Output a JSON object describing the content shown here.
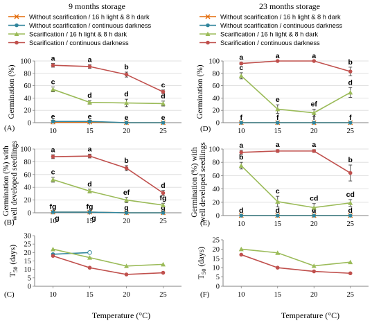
{
  "figure": {
    "x_axis_label": "Temperature (°C)",
    "colors": {
      "without_light": "#E46C0A",
      "without_dark": "#31859C",
      "scar_light": "#9BBB59",
      "scar_dark": "#C0504D",
      "axis": "#808080",
      "grid": "#D9D9D9"
    }
  },
  "columns": [
    {
      "title": "9 months storage",
      "legend": [
        {
          "label": "Without scarification / 16 h light & 8 h dark",
          "color": "#E46C0A",
          "marker": "x"
        },
        {
          "label": "Without scarification / continuous darkness",
          "color": "#31859C",
          "marker": "circle"
        },
        {
          "label": "Scarification / 16 h light & 8 h dark",
          "color": "#9BBB59",
          "marker": "triangle"
        },
        {
          "label": "Scarification / continuous darkness",
          "color": "#C0504D",
          "marker": "circle"
        }
      ]
    },
    {
      "title": "23 months storage",
      "legend": [
        {
          "label": "Without scarification / 16 h light & 8 h dark",
          "color": "#E46C0A",
          "marker": "x"
        },
        {
          "label": "Without scarification / continuous darkness",
          "color": "#31859C",
          "marker": "circle"
        },
        {
          "label": "Scarification / 16 h light & 8 h dark",
          "color": "#9BBB59",
          "marker": "triangle"
        },
        {
          "label": "Scarification / continuous darkness",
          "color": "#C0504D",
          "marker": "circle"
        }
      ]
    }
  ],
  "chart_data": [
    {
      "panel": "(A)",
      "type": "line",
      "ylabel": "Germination (%)",
      "xlabel": "",
      "x": [
        10,
        15,
        20,
        25
      ],
      "xlim": [
        7.5,
        27.5
      ],
      "ylim": [
        0,
        100
      ],
      "yticks": [
        0,
        20,
        40,
        60,
        80,
        100
      ],
      "grid": true,
      "series": [
        {
          "name": "Without scarification / 16 h light & 8 h dark",
          "color": "#E46C0A",
          "marker": "x",
          "values": [
            1,
            1,
            0,
            0
          ],
          "err": [
            0.5,
            0.5,
            0,
            0
          ],
          "letters": [
            "e",
            "e",
            "e",
            "e"
          ]
        },
        {
          "name": "Without scarification / continuous darkness",
          "color": "#31859C",
          "marker": "circle",
          "values": [
            2,
            2,
            0,
            0
          ],
          "err": [
            1,
            1,
            0,
            0
          ]
        },
        {
          "name": "Scarification / 16 h light & 8 h dark",
          "color": "#9BBB59",
          "marker": "triangle",
          "values": [
            54,
            33,
            32,
            31
          ],
          "err": [
            4,
            3,
            6,
            4
          ],
          "letters": [
            "c",
            "d",
            "d",
            "d"
          ]
        },
        {
          "name": "Scarification / continuous darkness",
          "color": "#C0504D",
          "marker": "circle",
          "values": [
            93,
            91,
            78,
            50
          ],
          "err": [
            3,
            3,
            4,
            3
          ],
          "letters": [
            "a",
            "a",
            "b",
            "c"
          ]
        }
      ]
    },
    {
      "panel": "(D)",
      "type": "line",
      "ylabel": "Germination (%)",
      "xlabel": "",
      "x": [
        10,
        15,
        20,
        25
      ],
      "xlim": [
        7.5,
        27.5
      ],
      "ylim": [
        0,
        100
      ],
      "yticks": [
        0,
        20,
        40,
        60,
        80,
        100
      ],
      "grid": true,
      "series": [
        {
          "name": "Without scarification / 16 h light & 8 h dark",
          "color": "#E46C0A",
          "marker": "x",
          "values": [
            0,
            0,
            0,
            0
          ],
          "err": [
            0,
            0,
            0,
            0
          ],
          "letters": [
            "f",
            "f",
            "f",
            "f"
          ]
        },
        {
          "name": "Without scarification / continuous darkness",
          "color": "#31859C",
          "marker": "circle",
          "values": [
            0,
            0,
            0,
            0
          ],
          "err": [
            0,
            0,
            0,
            0
          ]
        },
        {
          "name": "Scarification / 16 h light & 8 h dark",
          "color": "#9BBB59",
          "marker": "triangle",
          "values": [
            76,
            22,
            16,
            49
          ],
          "err": [
            5,
            7,
            6,
            8
          ],
          "letters": [
            "c",
            "e",
            "ef",
            "d"
          ]
        },
        {
          "name": "Scarification / continuous darkness",
          "color": "#C0504D",
          "marker": "circle",
          "values": [
            96,
            100,
            100,
            83
          ],
          "err": [
            2,
            0,
            0,
            7
          ],
          "letters": [
            "a",
            "a",
            "a",
            "b"
          ]
        }
      ]
    },
    {
      "panel": "(B)",
      "type": "line",
      "ylabel": "Germination (%) with well developed seedlings",
      "xlabel": "",
      "x": [
        10,
        15,
        20,
        25
      ],
      "xlim": [
        7.5,
        27.5
      ],
      "ylim": [
        0,
        100
      ],
      "yticks": [
        0,
        20,
        40,
        60,
        80,
        100
      ],
      "grid": true,
      "series": [
        {
          "name": "Without scarification / 16 h light & 8 h dark",
          "color": "#E46C0A",
          "marker": "x",
          "values": [
            1,
            1,
            0,
            0
          ],
          "err": [
            0.5,
            0.5,
            0,
            0
          ],
          "letters": [
            "fg",
            "fg",
            "g",
            "g"
          ]
        },
        {
          "name": "Without scarification / continuous darkness",
          "color": "#31859C",
          "marker": "circle",
          "values": [
            1,
            1,
            0,
            0
          ],
          "err": [
            0.5,
            0.5,
            0,
            0
          ],
          "letters": [
            "g",
            "g"
          ]
        },
        {
          "name": "Scarification / 16 h light & 8 h dark",
          "color": "#9BBB59",
          "marker": "triangle",
          "values": [
            52,
            34,
            20,
            12
          ],
          "err": [
            4,
            3,
            4,
            3
          ],
          "letters": [
            "c",
            "d",
            "ef",
            "fg"
          ]
        },
        {
          "name": "Scarification / continuous darkness",
          "color": "#C0504D",
          "marker": "circle",
          "values": [
            88,
            89,
            70,
            31
          ],
          "err": [
            3,
            3,
            4,
            4
          ],
          "letters": [
            "a",
            "a",
            "b",
            "d"
          ]
        }
      ]
    },
    {
      "panel": "(E)",
      "type": "line",
      "ylabel": "Germination (%) with well developed seedlings",
      "xlabel": "",
      "x": [
        10,
        15,
        20,
        25
      ],
      "xlim": [
        7.5,
        27.5
      ],
      "ylim": [
        0,
        100
      ],
      "yticks": [
        0,
        20,
        40,
        60,
        80,
        100
      ],
      "grid": true,
      "series": [
        {
          "name": "Without scarification / 16 h light & 8 h dark",
          "color": "#E46C0A",
          "marker": "x",
          "values": [
            0,
            0,
            0,
            0
          ],
          "err": [
            0,
            0,
            0,
            0
          ],
          "letters": [
            "d",
            "d",
            "d",
            "d"
          ]
        },
        {
          "name": "Without scarification / continuous darkness",
          "color": "#31859C",
          "marker": "circle",
          "values": [
            0,
            0,
            0,
            0
          ],
          "err": [
            0,
            0,
            0,
            0
          ]
        },
        {
          "name": "Scarification / 16 h light & 8 h dark",
          "color": "#9BBB59",
          "marker": "triangle",
          "values": [
            75,
            21,
            12,
            19
          ],
          "err": [
            5,
            8,
            6,
            5
          ],
          "letters": [
            "b",
            "c",
            "cd",
            "cd"
          ]
        },
        {
          "name": "Scarification / continuous darkness",
          "color": "#C0504D",
          "marker": "circle",
          "values": [
            95,
            97,
            97,
            64
          ],
          "err": [
            3,
            2,
            2,
            12
          ],
          "letters": [
            "a",
            "a",
            "a",
            "b"
          ]
        }
      ]
    },
    {
      "panel": "(C)",
      "type": "line",
      "ylabel": "T50 (days)",
      "xlabel": "Temperature (°C)",
      "x": [
        10,
        15,
        20,
        25
      ],
      "xlim": [
        7.5,
        27.5
      ],
      "ylim": [
        0,
        30
      ],
      "yticks": [
        0,
        5,
        10,
        15,
        20,
        25,
        30
      ],
      "grid": false,
      "series": [
        {
          "name": "Without scarification / continuous darkness",
          "color": "#31859C",
          "marker": "circle",
          "values": [
            19,
            20,
            null,
            null
          ]
        },
        {
          "name": "Scarification / 16 h light & 8 h dark",
          "color": "#9BBB59",
          "marker": "triangle",
          "values": [
            22,
            17,
            12,
            13
          ]
        },
        {
          "name": "Scarification / continuous darkness",
          "color": "#C0504D",
          "marker": "circle",
          "values": [
            18,
            11,
            7,
            8
          ]
        }
      ]
    },
    {
      "panel": "(F)",
      "type": "line",
      "ylabel": "T50 (days)",
      "xlabel": "Temperature (°C)",
      "x": [
        10,
        15,
        20,
        25
      ],
      "xlim": [
        7.5,
        27.5
      ],
      "ylim": [
        0,
        25
      ],
      "yticks": [
        0,
        5,
        10,
        15,
        20,
        25
      ],
      "grid": false,
      "series": [
        {
          "name": "Scarification / 16 h light & 8 h dark",
          "color": "#9BBB59",
          "marker": "triangle",
          "values": [
            20,
            18,
            11,
            13
          ]
        },
        {
          "name": "Scarification / continuous darkness",
          "color": "#C0504D",
          "marker": "circle",
          "values": [
            17,
            10,
            8,
            7
          ]
        }
      ]
    }
  ]
}
